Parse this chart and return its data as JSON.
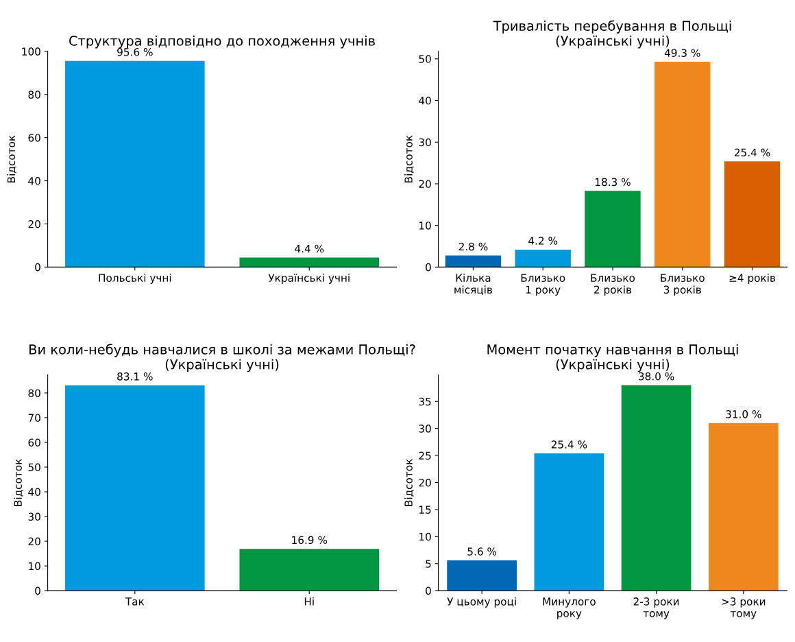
{
  "chart_data": [
    {
      "type": "bar",
      "title": "Структура відповідно до походження учнів",
      "ylabel": "Відсоток",
      "categories": [
        "Польські учні",
        "Українські учні"
      ],
      "values": [
        95.6,
        4.4
      ],
      "colors": [
        "#009ade",
        "#00963f"
      ],
      "value_labels": [
        "95.6 %",
        "4.4 %"
      ],
      "ylim": [
        0,
        100
      ],
      "yticks": [
        0,
        20,
        40,
        60,
        80,
        100
      ],
      "grid": false,
      "legend": false
    },
    {
      "type": "bar",
      "title": "Тривалість перебування в Польщі\n(Українські учні)",
      "ylabel": "Відсоток",
      "categories": [
        "Кілька\nмісяців",
        "Близько\n1 року",
        "Близько\n2 років",
        "Близько\n3 років",
        "≥4 років"
      ],
      "values": [
        2.8,
        4.2,
        18.3,
        49.3,
        25.4
      ],
      "colors": [
        "#0068b4",
        "#009ade",
        "#00963f",
        "#f0871e",
        "#d95f02"
      ],
      "value_labels": [
        "2.8 %",
        "4.2 %",
        "18.3 %",
        "49.3 %",
        "25.4 %"
      ],
      "ylim": [
        0,
        51.8
      ],
      "yticks": [
        0,
        10,
        20,
        30,
        40,
        50
      ],
      "grid": false,
      "legend": false
    },
    {
      "type": "bar",
      "title": "Ви коли-небудь навчалися в школі за межами Польщі?\n(Українські учні)",
      "ylabel": "Відсоток",
      "categories": [
        "Так",
        "Ні"
      ],
      "values": [
        83.1,
        16.9
      ],
      "colors": [
        "#009ade",
        "#00963f"
      ],
      "value_labels": [
        "83.1 %",
        "16.9 %"
      ],
      "ylim": [
        0,
        87.3
      ],
      "yticks": [
        0,
        10,
        20,
        30,
        40,
        50,
        60,
        70,
        80
      ],
      "grid": false,
      "legend": false
    },
    {
      "type": "bar",
      "title": "Момент початку навчання в Польщі\n(Українські учні)",
      "ylabel": "Відсоток",
      "categories": [
        "У цьому році",
        "Минулого\nроку",
        "2-3 роки\nтому",
        ">3 роки\nтому"
      ],
      "values": [
        5.6,
        25.4,
        38.0,
        31.0
      ],
      "colors": [
        "#0068b4",
        "#009ade",
        "#00963f",
        "#f0871e"
      ],
      "value_labels": [
        "5.6 %",
        "25.4 %",
        "38.0 %",
        "31.0 %"
      ],
      "ylim": [
        0,
        39.9
      ],
      "yticks": [
        0,
        5,
        10,
        15,
        20,
        25,
        30,
        35
      ],
      "grid": false,
      "legend": false
    }
  ]
}
